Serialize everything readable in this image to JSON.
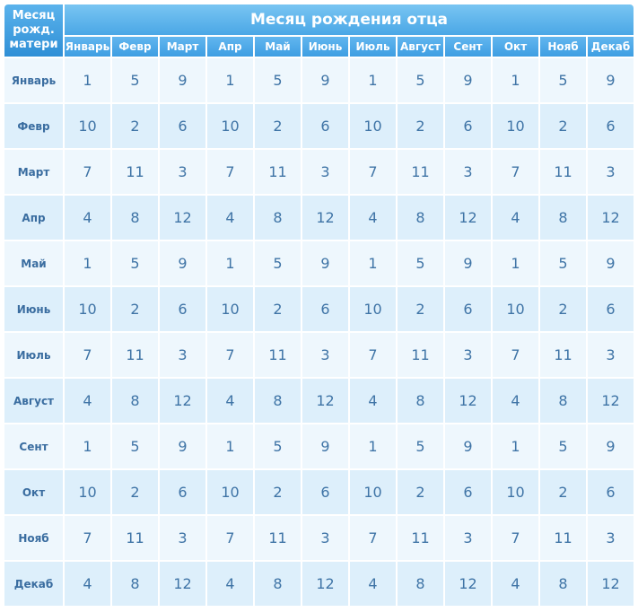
{
  "corner_label": [
    "Месяц",
    "рожд.",
    "матери"
  ],
  "title": "Месяц рождения отца",
  "months": [
    "Январь",
    "Февр",
    "Март",
    "Апр",
    "Май",
    "Июнь",
    "Июль",
    "Август",
    "Сент",
    "Окт",
    "Нояб",
    "Декаб"
  ],
  "rows": [
    {
      "label": "Январь",
      "values": [
        "1",
        "5",
        "9",
        "1",
        "5",
        "9",
        "1",
        "5",
        "9",
        "1",
        "5",
        "9"
      ]
    },
    {
      "label": "Февр",
      "values": [
        "10",
        "2",
        "6",
        "10",
        "2",
        "6",
        "10",
        "2",
        "6",
        "10",
        "2",
        "6"
      ]
    },
    {
      "label": "Март",
      "values": [
        "7",
        "11",
        "3",
        "7",
        "11",
        "3",
        "7",
        "11",
        "3",
        "7",
        "11",
        "3"
      ]
    },
    {
      "label": "Апр",
      "values": [
        "4",
        "8",
        "12",
        "4",
        "8",
        "12",
        "4",
        "8",
        "12",
        "4",
        "8",
        "12"
      ]
    },
    {
      "label": "Май",
      "values": [
        "1",
        "5",
        "9",
        "1",
        "5",
        "9",
        "1",
        "5",
        "9",
        "1",
        "5",
        "9"
      ]
    },
    {
      "label": "Июнь",
      "values": [
        "10",
        "2",
        "6",
        "10",
        "2",
        "6",
        "10",
        "2",
        "6",
        "10",
        "2",
        "6"
      ]
    },
    {
      "label": "Июль",
      "values": [
        "7",
        "11",
        "3",
        "7",
        "11",
        "3",
        "7",
        "11",
        "3",
        "7",
        "11",
        "3"
      ]
    },
    {
      "label": "Август",
      "values": [
        "4",
        "8",
        "12",
        "4",
        "8",
        "12",
        "4",
        "8",
        "12",
        "4",
        "8",
        "12"
      ]
    },
    {
      "label": "Сент",
      "values": [
        "1",
        "5",
        "9",
        "1",
        "5",
        "9",
        "1",
        "5",
        "9",
        "1",
        "5",
        "9"
      ]
    },
    {
      "label": "Окт",
      "values": [
        "10",
        "2",
        "6",
        "10",
        "2",
        "6",
        "10",
        "2",
        "6",
        "10",
        "2",
        "6"
      ]
    },
    {
      "label": "Нояб",
      "values": [
        "7",
        "11",
        "3",
        "7",
        "11",
        "3",
        "7",
        "11",
        "3",
        "7",
        "11",
        "3"
      ]
    },
    {
      "label": "Декаб",
      "values": [
        "4",
        "8",
        "12",
        "4",
        "8",
        "12",
        "4",
        "8",
        "12",
        "4",
        "8",
        "12"
      ]
    }
  ]
}
